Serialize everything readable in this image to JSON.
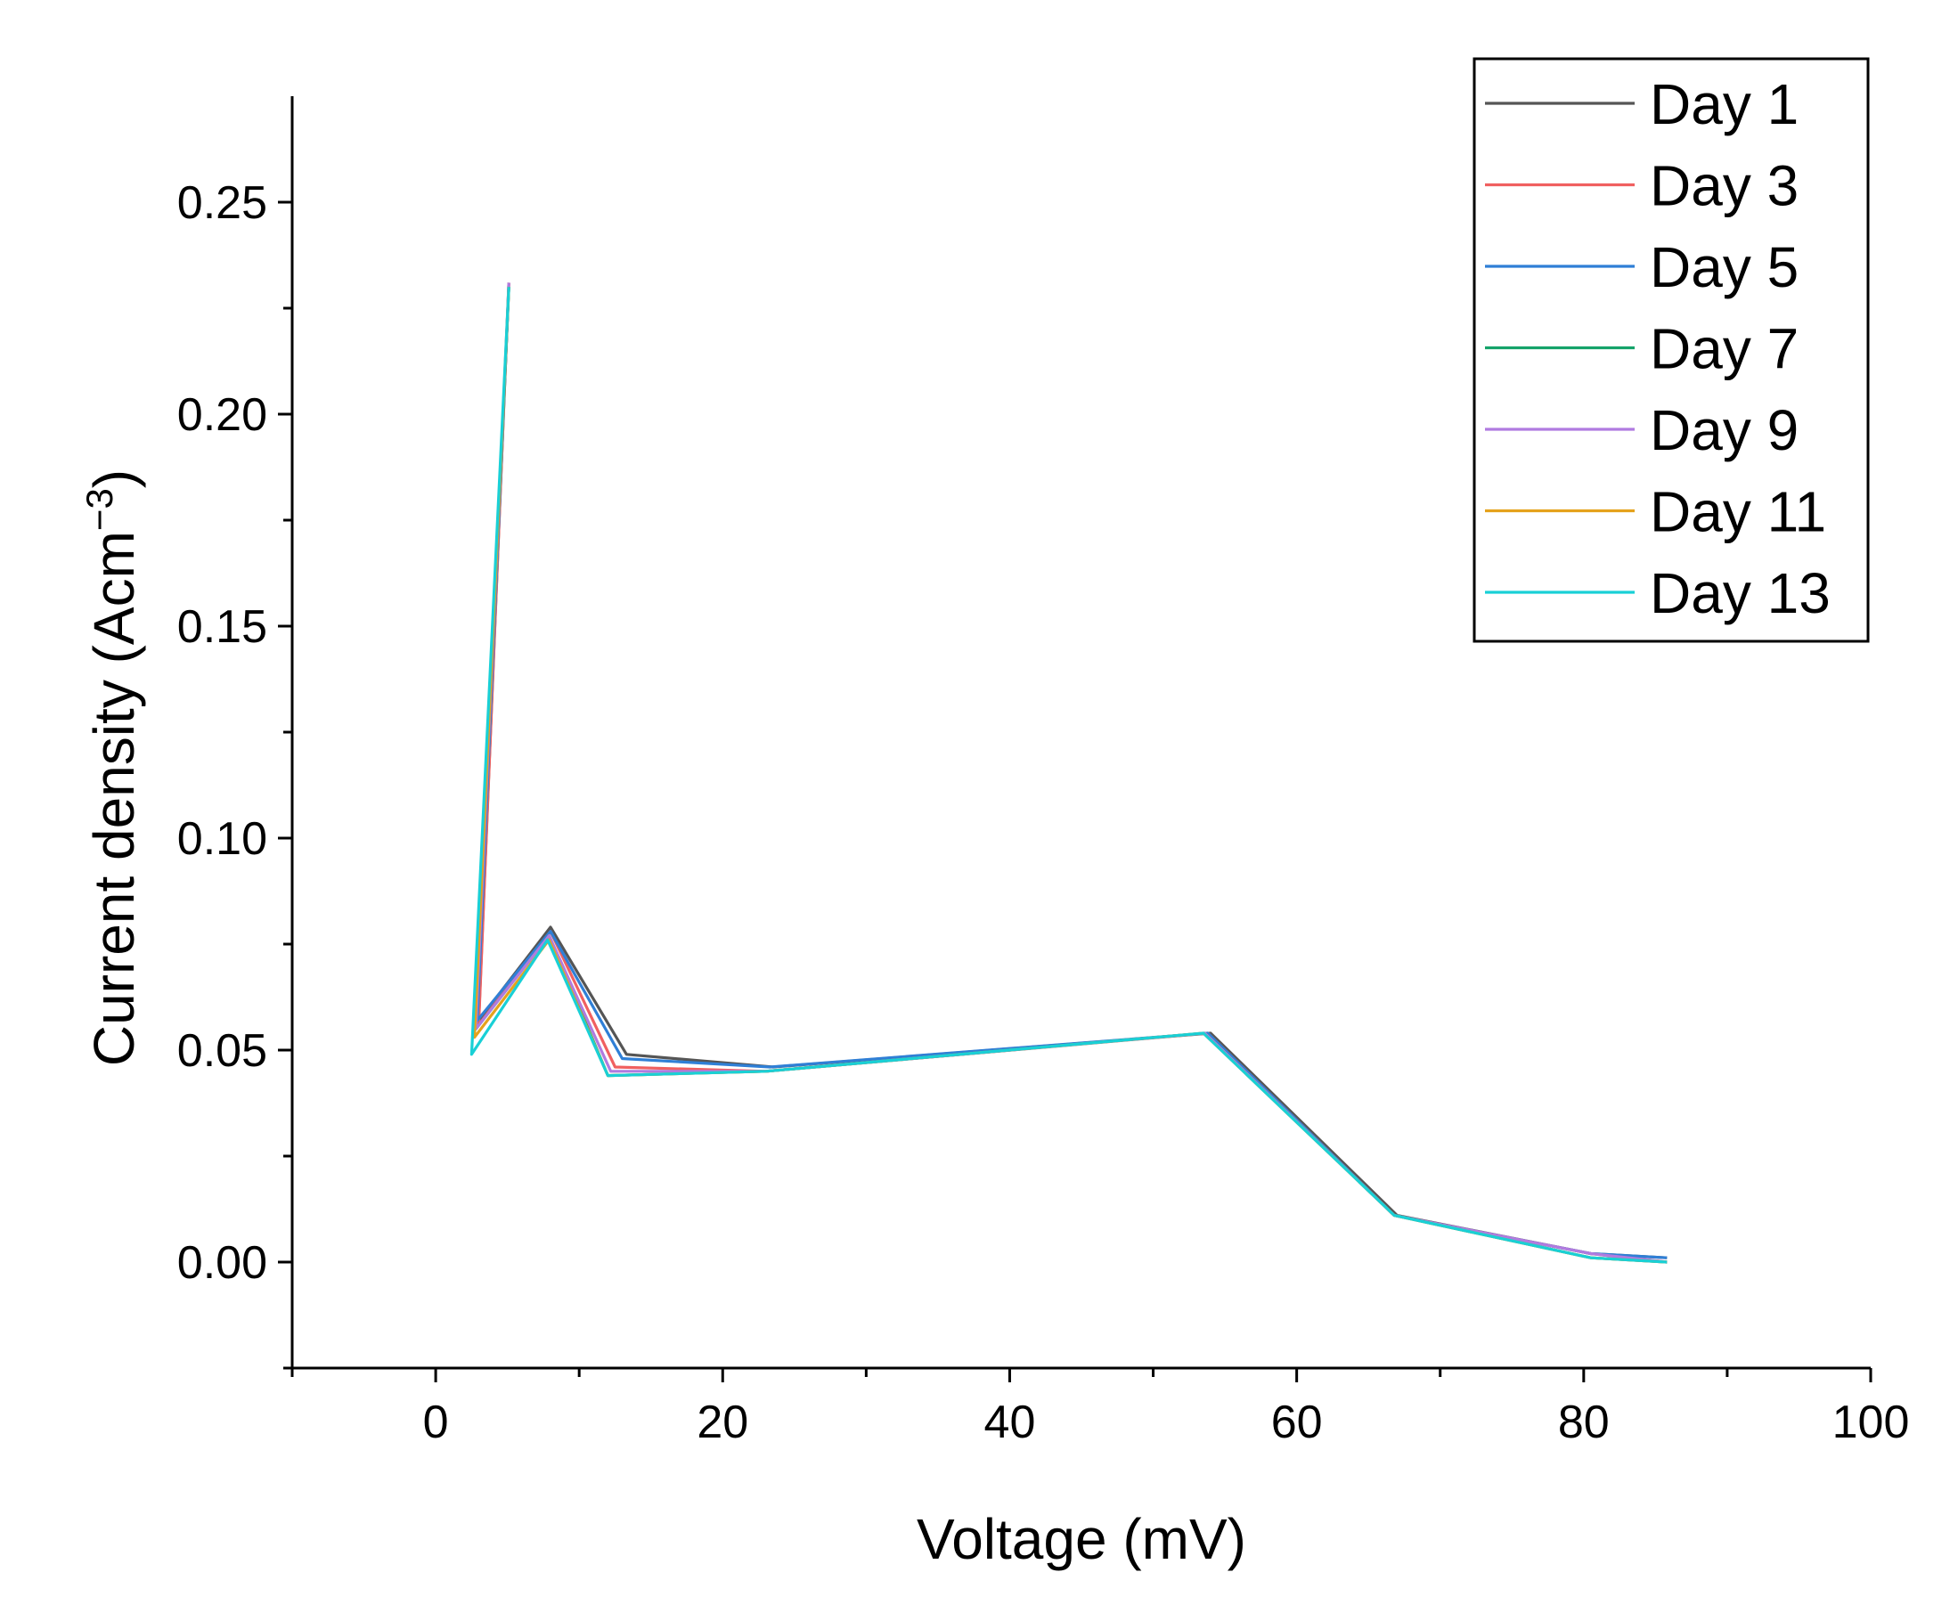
{
  "chart_data": {
    "type": "line",
    "title": "",
    "xlabel": "Voltage (mV)",
    "ylabel": {
      "base": "Current density (Acm",
      "sup": "−3",
      "close": ")"
    },
    "xlim": [
      -10,
      100
    ],
    "ylim": [
      -0.025,
      0.275
    ],
    "x_ticks": [
      0,
      20,
      40,
      60,
      80,
      100
    ],
    "x_tick_labels": [
      "0",
      "20",
      "40",
      "60",
      "80",
      "100"
    ],
    "y_ticks": [
      0.0,
      0.05,
      0.1,
      0.15,
      0.2,
      0.25
    ],
    "y_tick_labels": [
      "0.00",
      "0.05",
      "0.10",
      "0.15",
      "0.20",
      "0.25"
    ],
    "legend_position": "top-right",
    "grid": false,
    "series": [
      {
        "name": "Day 1",
        "color": "#555555",
        "x": [
          5.1,
          3.0,
          8.0,
          13.3,
          23.5,
          54.0,
          67.0,
          80.5,
          85.8
        ],
        "y": [
          0.231,
          0.057,
          0.079,
          0.049,
          0.046,
          0.054,
          0.011,
          0.002,
          0.001
        ]
      },
      {
        "name": "Day 3",
        "color": "#f06060",
        "x": [
          5.1,
          3.0,
          8.0,
          12.5,
          23.0,
          53.8,
          66.8,
          80.5,
          85.8
        ],
        "y": [
          0.231,
          0.056,
          0.078,
          0.046,
          0.045,
          0.054,
          0.011,
          0.002,
          0.0
        ]
      },
      {
        "name": "Day 5",
        "color": "#2f7fd6",
        "x": [
          5.1,
          2.9,
          8.0,
          13.0,
          23.3,
          53.8,
          66.8,
          80.5,
          85.8
        ],
        "y": [
          0.23,
          0.057,
          0.078,
          0.048,
          0.046,
          0.054,
          0.011,
          0.002,
          0.001
        ]
      },
      {
        "name": "Day 7",
        "color": "#15a36a",
        "x": [
          5.1,
          2.8,
          7.9,
          12.0,
          23.0,
          53.6,
          66.8,
          80.5,
          85.8
        ],
        "y": [
          0.23,
          0.055,
          0.077,
          0.044,
          0.045,
          0.054,
          0.011,
          0.001,
          0.0
        ]
      },
      {
        "name": "Day 9",
        "color": "#b07be0",
        "x": [
          5.1,
          2.8,
          7.9,
          12.2,
          23.0,
          53.6,
          66.8,
          80.5,
          85.8
        ],
        "y": [
          0.231,
          0.055,
          0.077,
          0.045,
          0.045,
          0.054,
          0.011,
          0.002,
          0.0
        ]
      },
      {
        "name": "Day 11",
        "color": "#e5a21c",
        "x": [
          5.1,
          2.7,
          7.9,
          12.0,
          23.0,
          53.5,
          66.8,
          80.5,
          85.8
        ],
        "y": [
          0.23,
          0.053,
          0.076,
          0.044,
          0.045,
          0.054,
          0.011,
          0.001,
          0.0
        ]
      },
      {
        "name": "Day 13",
        "color": "#19d0d6",
        "x": [
          5.1,
          2.5,
          7.8,
          12.0,
          23.0,
          53.5,
          66.8,
          80.5,
          85.8
        ],
        "y": [
          0.23,
          0.049,
          0.076,
          0.044,
          0.045,
          0.054,
          0.011,
          0.001,
          0.0
        ]
      }
    ]
  }
}
